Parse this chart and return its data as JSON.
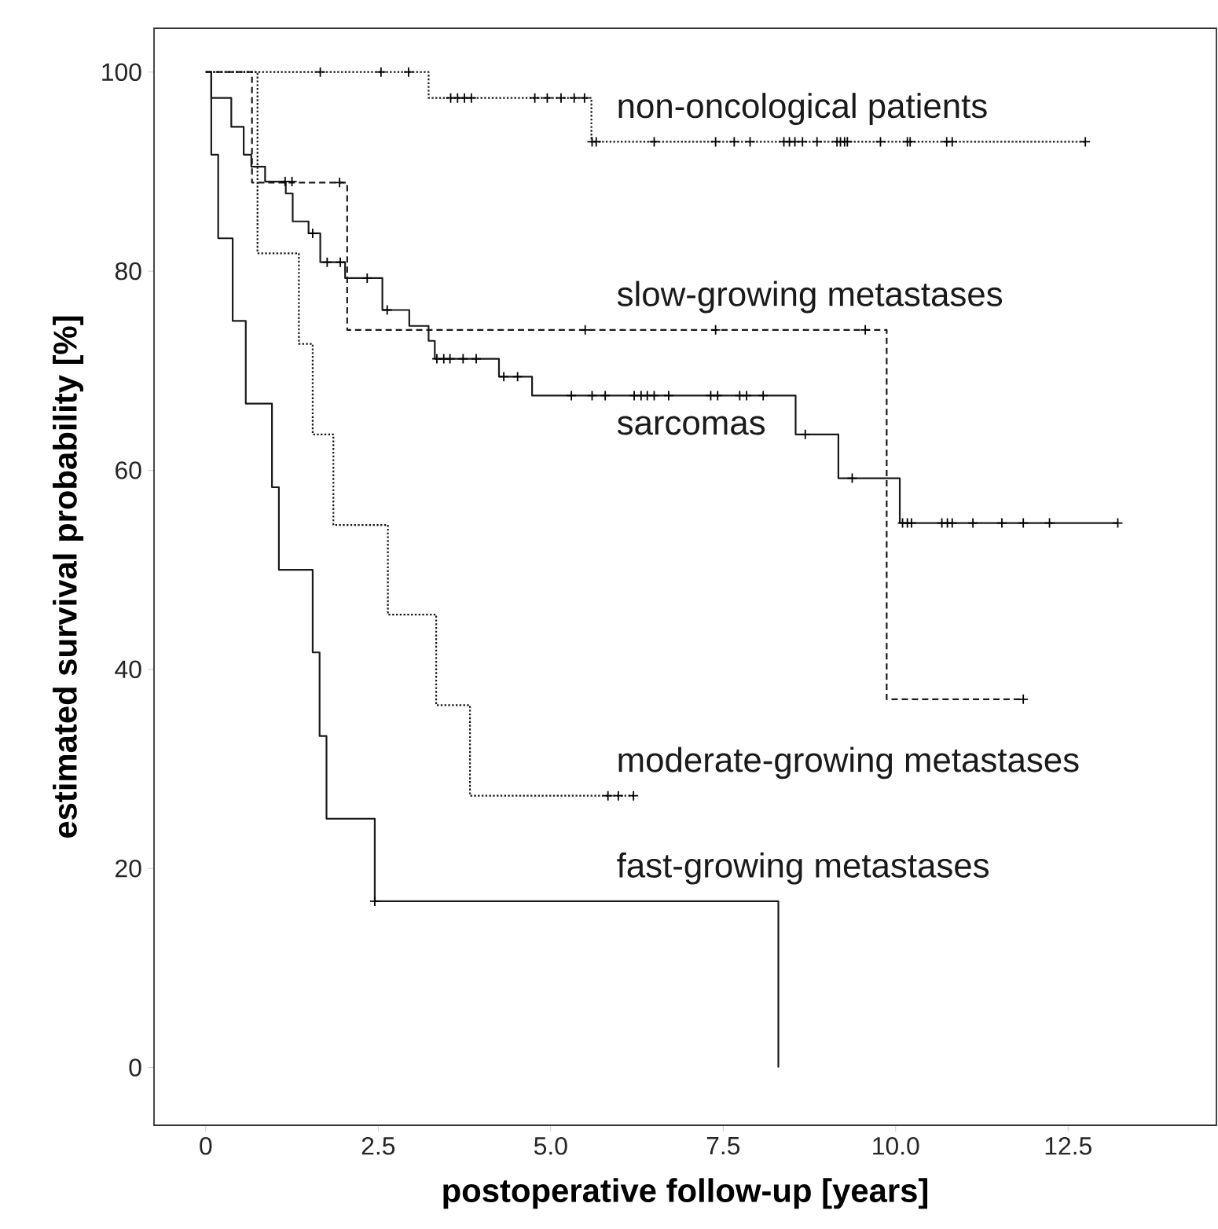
{
  "chart_data": {
    "type": "step",
    "xlabel": "postoperative follow-up [years]",
    "ylabel": "estimated survival probability [%]",
    "xlim": [
      -0.75,
      14.65
    ],
    "ylim": [
      -5.8,
      104.4
    ],
    "xticks": [
      0,
      2.5,
      {
        "value": 5,
        "label": "5.0"
      },
      7.5,
      {
        "value": 10,
        "label": "10.0"
      },
      12.5
    ],
    "yticks": [
      0,
      20,
      40,
      60,
      80,
      100
    ],
    "grid": false,
    "legend": false,
    "marker": "none",
    "series": [
      {
        "name": "fast-growing metastases",
        "line_style": "solid",
        "color": "#1a1a1a",
        "x": [
          0,
          0.08,
          0.18,
          0.39,
          0.58,
          0.96,
          1.06,
          1.55,
          1.65,
          1.75,
          2.45,
          8.3
        ],
        "values": [
          100,
          91.7,
          83.3,
          75,
          66.7,
          58.3,
          50,
          41.7,
          33.3,
          25,
          16.7,
          0
        ]
      },
      {
        "name": "moderate-growing metastases",
        "line_style": "dotted",
        "color": "#1a1a1a",
        "x": [
          0,
          0.75,
          1.35,
          1.55,
          1.85,
          2.64,
          3.34,
          3.83,
          6.2
        ],
        "values": [
          100,
          81.8,
          72.7,
          63.6,
          54.5,
          45.5,
          36.4,
          27.3,
          27.3
        ]
      },
      {
        "name": "slow-growing metastases",
        "line_style": "dashed",
        "color": "#1a1a1a",
        "x": [
          0,
          0.67,
          2.05,
          9.87,
          11.85
        ],
        "values": [
          100,
          88.9,
          74.1,
          37,
          37
        ]
      },
      {
        "name": "non-oncological patients",
        "line_style": "dotted",
        "color": "#1a1a1a",
        "x": [
          0,
          3.23,
          5.59,
          12.75
        ],
        "values": [
          100,
          97.4,
          93,
          93
        ]
      },
      {
        "name": "sarcomas",
        "line_style": "solid",
        "color": "#1a1a1a",
        "x": [
          0,
          0.08,
          0.37,
          0.55,
          0.66,
          0.86,
          1.16,
          1.26,
          1.49,
          1.66,
          2.02,
          2.56,
          2.95,
          3.23,
          3.32,
          4.25,
          4.73,
          8.55,
          9.17,
          10.06,
          13.22
        ],
        "values": [
          100,
          97.4,
          94.5,
          91.7,
          90.5,
          89,
          87.8,
          85,
          83.8,
          80.9,
          79.3,
          76.1,
          74.5,
          73,
          71.2,
          69.4,
          67.5,
          63.6,
          59.2,
          54.7,
          54.7
        ]
      },
      {
        "type": "scatter",
        "marker": "cross",
        "color": "#000000",
        "x": [
          2.45
        ],
        "values": [
          16.7
        ]
      },
      {
        "type": "scatter",
        "marker": "cross",
        "color": "#000000",
        "x": [
          5.83,
          5.98,
          6.2
        ],
        "values": [
          27.3,
          27.3,
          27.3
        ]
      },
      {
        "type": "scatter",
        "marker": "cross",
        "color": "#000000",
        "x": [
          1.94,
          5.5,
          7.39,
          9.56,
          11.85
        ],
        "values": [
          88.9,
          74.1,
          74.1,
          74.1,
          37
        ]
      },
      {
        "type": "scatter",
        "marker": "cross",
        "color": "#000000",
        "x": [
          1.66,
          2.54,
          2.94,
          3.55,
          3.65,
          3.75,
          3.85,
          4.77,
          4.95,
          5.15,
          5.34,
          5.49,
          5.6,
          5.66,
          6.5,
          7.39,
          7.66,
          7.89,
          8.38,
          8.46,
          8.54,
          8.65,
          8.86,
          9.15,
          9.2,
          9.26,
          9.3,
          9.78,
          10.17,
          10.21,
          10.74,
          10.82,
          12.75
        ],
        "values": [
          100,
          100,
          100,
          97.4,
          97.4,
          97.4,
          97.4,
          97.4,
          97.4,
          97.4,
          97.4,
          97.4,
          93,
          93,
          93,
          93,
          93,
          93,
          93,
          93,
          93,
          93,
          93,
          93,
          93,
          93,
          93,
          93,
          93,
          93,
          93,
          93,
          93
        ]
      },
      {
        "type": "scatter",
        "marker": "cross",
        "color": "#000000",
        "x": [
          1.15,
          1.25,
          1.55,
          1.76,
          1.95,
          2.34,
          2.63,
          3.35,
          3.45,
          3.54,
          3.73,
          3.92,
          4.32,
          4.52,
          5.3,
          5.6,
          5.79,
          6.21,
          6.31,
          6.4,
          6.5,
          6.71,
          7.32,
          7.42,
          7.74,
          7.84,
          8.08,
          8.69,
          9.37,
          10.1,
          10.17,
          10.23,
          10.67,
          10.75,
          10.82,
          11.12,
          11.54,
          11.85,
          12.23,
          13.22
        ],
        "values": [
          89,
          89,
          83.8,
          80.9,
          80.9,
          79.3,
          76.1,
          71.2,
          71.2,
          71.2,
          71.2,
          71.2,
          69.4,
          69.4,
          67.5,
          67.5,
          67.5,
          67.5,
          67.5,
          67.5,
          67.5,
          67.5,
          67.5,
          67.5,
          67.5,
          67.5,
          67.5,
          63.6,
          59.2,
          54.7,
          54.7,
          54.7,
          54.7,
          54.7,
          54.7,
          54.7,
          54.7,
          54.7,
          54.7,
          54.7
        ]
      }
    ]
  }
}
